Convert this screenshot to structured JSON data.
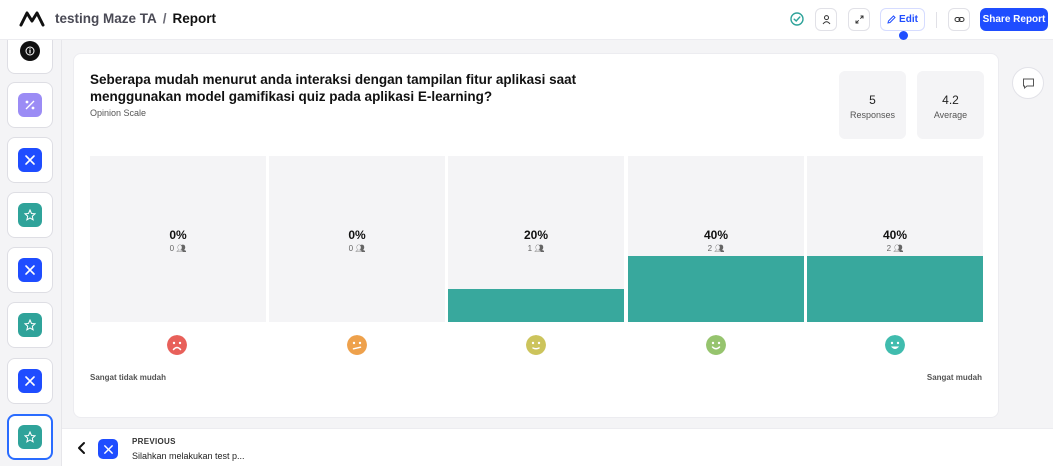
{
  "header": {
    "project": "testing Maze TA",
    "separator": "/",
    "page": "Report",
    "edit_label": "Edit",
    "share_label": "Share Report"
  },
  "rail": {
    "items": [
      {
        "icon": "info-icon",
        "color": "#111111"
      },
      {
        "icon": "percent-icon",
        "color": "#9b8cf5"
      },
      {
        "icon": "mission-icon",
        "color": "#1f4dff"
      },
      {
        "icon": "star-icon",
        "color": "#2fa39a"
      },
      {
        "icon": "mission-icon",
        "color": "#1f4dff"
      },
      {
        "icon": "star-icon",
        "color": "#2fa39a"
      },
      {
        "icon": "mission-icon",
        "color": "#1f4dff"
      },
      {
        "icon": "star-icon",
        "color": "#2fa39a"
      }
    ]
  },
  "question": {
    "title": "Seberapa mudah menurut anda interaksi dengan tampilan fitur aplikasi saat menggunakan model gamifikasi quiz pada aplikasi E-learning?",
    "type": "Opinion Scale",
    "stats": [
      {
        "value": "5",
        "label": "Responses"
      },
      {
        "value": "4.2",
        "label": "Average"
      }
    ],
    "scale": [
      {
        "percent_label": "0%",
        "count_label": "0",
        "fraction": 0,
        "face_color": "#e8605a"
      },
      {
        "percent_label": "0%",
        "count_label": "0",
        "fraction": 0,
        "face_color": "#eea14c"
      },
      {
        "percent_label": "20%",
        "count_label": "1",
        "fraction": 0.2,
        "face_color": "#ccc45c"
      },
      {
        "percent_label": "40%",
        "count_label": "2",
        "fraction": 0.4,
        "face_color": "#96c46e"
      },
      {
        "percent_label": "40%",
        "count_label": "2",
        "fraction": 0.4,
        "face_color": "#40bcae"
      }
    ],
    "min_label": "Sangat tidak mudah",
    "max_label": "Sangat mudah",
    "fill_color": "#38a89d"
  },
  "footer": {
    "prev_label": "PREVIOUS",
    "prev_title": "Silahkan melakukan test p..."
  }
}
